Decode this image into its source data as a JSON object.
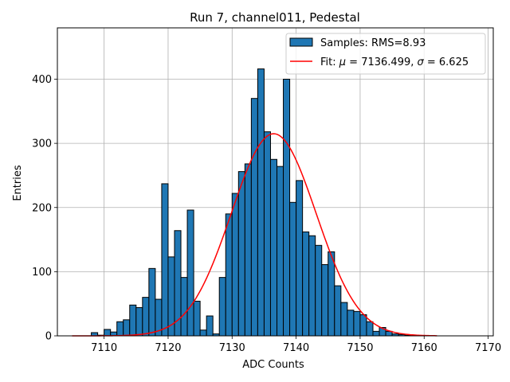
{
  "chart_data": {
    "type": "bar",
    "title": "Run 7, channel011, Pedestal",
    "xlabel": "ADC Counts",
    "ylabel": "Entries",
    "xlim": [
      7102.7,
      7170.8
    ],
    "ylim": [
      0,
      480
    ],
    "xticks": [
      7110,
      7120,
      7130,
      7140,
      7150,
      7160,
      7170
    ],
    "yticks": [
      0,
      100,
      200,
      300,
      400
    ],
    "grid": true,
    "legend_position": "top-right",
    "bar_color": "#1f77b4",
    "fit_color": "#ff0000",
    "histogram": {
      "name": "Samples: RMS=8.93",
      "bin_width": 1,
      "bin_starts": [
        7105,
        7106,
        7107,
        7108,
        7109,
        7110,
        7111,
        7112,
        7113,
        7114,
        7115,
        7116,
        7117,
        7118,
        7119,
        7120,
        7121,
        7122,
        7123,
        7124,
        7125,
        7126,
        7127,
        7128,
        7129,
        7130,
        7131,
        7132,
        7133,
        7134,
        7135,
        7136,
        7137,
        7138,
        7139,
        7140,
        7141,
        7142,
        7143,
        7144,
        7145,
        7146,
        7147,
        7148,
        7149,
        7150,
        7151,
        7152,
        7153,
        7154,
        7155,
        7156,
        7157,
        7158,
        7159,
        7160,
        7161,
        7162,
        7163,
        7164,
        7165,
        7166,
        7167,
        7168
      ],
      "counts": [
        0,
        0,
        0,
        5,
        1,
        10,
        6,
        22,
        25,
        48,
        44,
        60,
        105,
        57,
        237,
        123,
        164,
        91,
        196,
        54,
        9,
        31,
        3,
        91,
        190,
        222,
        256,
        268,
        370,
        416,
        318,
        275,
        264,
        400,
        208,
        242,
        162,
        156,
        141,
        111,
        131,
        78,
        52,
        40,
        38,
        33,
        22,
        7,
        13,
        7,
        3,
        2,
        1,
        1,
        0,
        0,
        0,
        0,
        0,
        0,
        0,
        0,
        0,
        0
      ]
    },
    "fit": {
      "name_prefix": "Fit: ",
      "mu_symbol": "μ",
      "mu_value": " = 7136.499, ",
      "sigma_symbol": "σ",
      "sigma_value": " = 6.625",
      "mu": 7136.499,
      "sigma": 6.625,
      "amplitude": 315,
      "x_range": [
        7105,
        7162
      ]
    }
  }
}
